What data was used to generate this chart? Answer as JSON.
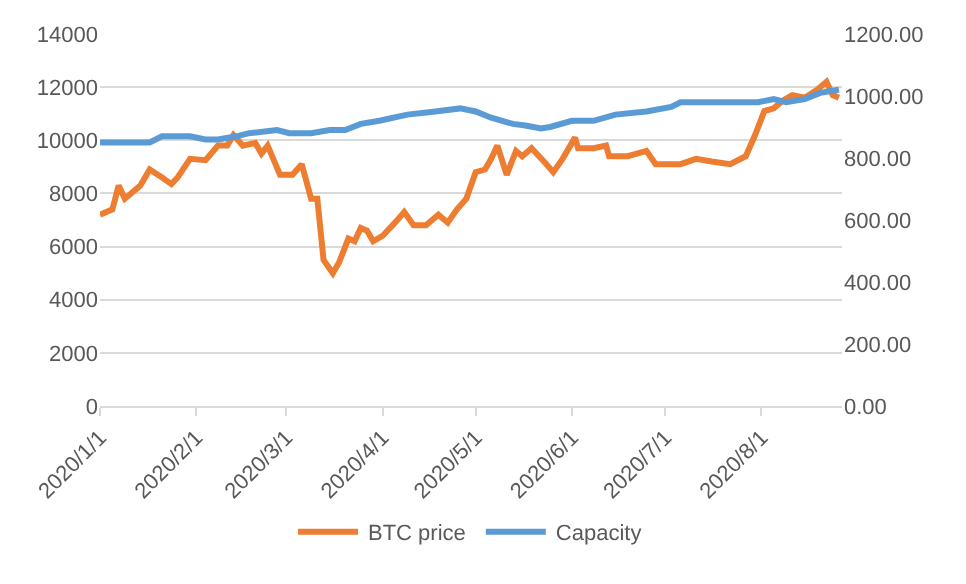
{
  "chart_data": {
    "type": "line",
    "xlim": [
      "2020-01-01",
      "2020-08-27"
    ],
    "xticks": [
      {
        "value": "2020-01-01",
        "label": "2020/1/1"
      },
      {
        "value": "2020-02-01",
        "label": "2020/2/1"
      },
      {
        "value": "2020-03-01",
        "label": "2020/3/1"
      },
      {
        "value": "2020-04-01",
        "label": "2020/4/1"
      },
      {
        "value": "2020-05-01",
        "label": "2020/5/1"
      },
      {
        "value": "2020-06-01",
        "label": "2020/6/1"
      },
      {
        "value": "2020-07-01",
        "label": "2020/7/1"
      },
      {
        "value": "2020-08-01",
        "label": "2020/8/1"
      }
    ],
    "ylim": [
      0,
      14000
    ],
    "yticks": [
      0,
      2000,
      4000,
      6000,
      8000,
      10000,
      12000,
      14000
    ],
    "y2lim": [
      0,
      1200
    ],
    "y2ticks": [
      {
        "value": 0,
        "label": "0.00"
      },
      {
        "value": 200,
        "label": "200.00"
      },
      {
        "value": 400,
        "label": "400.00"
      },
      {
        "value": 600,
        "label": "600.00"
      },
      {
        "value": 800,
        "label": "800.00"
      },
      {
        "value": 1000,
        "label": "1000.00"
      },
      {
        "value": 1200,
        "label": "1200.00"
      }
    ],
    "grid": "y",
    "legend": "bottom",
    "marker": "none",
    "line_style": "solid",
    "series": [
      {
        "name": "BTC price",
        "color": "#ed7d31",
        "x": [
          "2020-01-01",
          "2020-01-05",
          "2020-01-07",
          "2020-01-09",
          "2020-01-14",
          "2020-01-17",
          "2020-01-21",
          "2020-01-24",
          "2020-01-26",
          "2020-01-30",
          "2020-02-04",
          "2020-02-08",
          "2020-02-11",
          "2020-02-13",
          "2020-02-16",
          "2020-02-20",
          "2020-02-22",
          "2020-02-24",
          "2020-02-28",
          "2020-03-03",
          "2020-03-06",
          "2020-03-09",
          "2020-03-11",
          "2020-03-13",
          "2020-03-16",
          "2020-03-18",
          "2020-03-21",
          "2020-03-23",
          "2020-03-25",
          "2020-03-27",
          "2020-03-29",
          "2020-04-01",
          "2020-04-05",
          "2020-04-08",
          "2020-04-11",
          "2020-04-15",
          "2020-04-19",
          "2020-04-22",
          "2020-04-25",
          "2020-04-28",
          "2020-05-01",
          "2020-05-04",
          "2020-05-06",
          "2020-05-08",
          "2020-05-11",
          "2020-05-14",
          "2020-05-16",
          "2020-05-19",
          "2020-05-23",
          "2020-05-26",
          "2020-05-29",
          "2020-06-02",
          "2020-06-03",
          "2020-06-08",
          "2020-06-12",
          "2020-06-13",
          "2020-06-19",
          "2020-06-25",
          "2020-06-28",
          "2020-07-03",
          "2020-07-06",
          "2020-07-11",
          "2020-07-16",
          "2020-07-22",
          "2020-07-27",
          "2020-07-30",
          "2020-08-02",
          "2020-08-05",
          "2020-08-08",
          "2020-08-11",
          "2020-08-15",
          "2020-08-19",
          "2020-08-22",
          "2020-08-24",
          "2020-08-26"
        ],
        "values": [
          7200,
          7400,
          8300,
          7800,
          8300,
          8900,
          8600,
          8350,
          8600,
          9300,
          9250,
          9800,
          9800,
          10200,
          9800,
          9900,
          9500,
          9800,
          8700,
          8700,
          9100,
          7800,
          7800,
          5500,
          5000,
          5400,
          6300,
          6200,
          6700,
          6600,
          6200,
          6400,
          6900,
          7300,
          6800,
          6800,
          7200,
          6900,
          7400,
          7800,
          8800,
          8900,
          9300,
          9800,
          8700,
          9600,
          9400,
          9700,
          9200,
          8800,
          9300,
          10100,
          9700,
          9700,
          9800,
          9400,
          9400,
          9600,
          9100,
          9100,
          9100,
          9300,
          9200,
          9100,
          9400,
          10200,
          11100,
          11200,
          11500,
          11700,
          11600,
          11900,
          12200,
          11700,
          11600
        ]
      },
      {
        "name": "Capacity",
        "color": "#5b9bd5",
        "axis": "y2",
        "x": [
          "2020-01-01",
          "2020-01-17",
          "2020-01-21",
          "2020-01-30",
          "2020-02-04",
          "2020-02-08",
          "2020-02-14",
          "2020-02-18",
          "2020-02-27",
          "2020-03-02",
          "2020-03-09",
          "2020-03-15",
          "2020-03-20",
          "2020-03-25",
          "2020-03-31",
          "2020-04-09",
          "2020-04-18",
          "2020-04-26",
          "2020-05-01",
          "2020-05-06",
          "2020-05-13",
          "2020-05-17",
          "2020-05-22",
          "2020-05-25",
          "2020-06-01",
          "2020-06-08",
          "2020-06-15",
          "2020-06-25",
          "2020-07-03",
          "2020-07-06",
          "2020-07-20",
          "2020-07-31",
          "2020-08-05",
          "2020-08-09",
          "2020-08-15",
          "2020-08-20",
          "2020-08-26"
        ],
        "values": [
          850,
          850,
          870,
          870,
          860,
          860,
          870,
          880,
          890,
          880,
          880,
          890,
          890,
          910,
          920,
          940,
          950,
          960,
          950,
          930,
          910,
          905,
          895,
          900,
          920,
          920,
          940,
          950,
          965,
          980,
          980,
          980,
          990,
          980,
          990,
          1010,
          1020
        ]
      }
    ]
  }
}
